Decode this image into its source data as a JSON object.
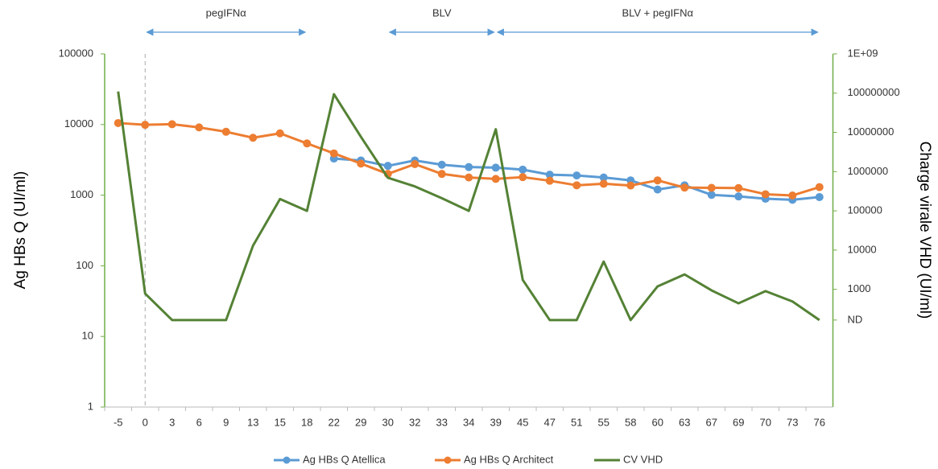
{
  "chart_data": {
    "type": "line",
    "categories": [
      "-5",
      "0",
      "3",
      "6",
      "9",
      "13",
      "15",
      "18",
      "22",
      "29",
      "30",
      "32",
      "33",
      "34",
      "39",
      "45",
      "47",
      "51",
      "55",
      "58",
      "60",
      "63",
      "67",
      "69",
      "70",
      "73",
      "76"
    ],
    "ylabel": "Ag HBs Q (UI/ml)",
    "y2label": "Charge virale VHD  (UI/ml)",
    "ylog": true,
    "y2log": true,
    "ylim": [
      1,
      100000
    ],
    "yticks": [
      1,
      10,
      100,
      1000,
      10000,
      100000
    ],
    "y2lim": [
      1,
      1000000000
    ],
    "y2ticks": [
      {
        "value": 1000000000,
        "label": "1E+09"
      },
      100000000,
      10000000,
      1000000,
      100000,
      10000,
      1000,
      {
        "value": 165,
        "label": "ND"
      }
    ],
    "axis_color": "#70ad47",
    "legend": "bottom",
    "annotations": [
      {
        "text": "pegIFNα",
        "from": "0",
        "to": "18"
      },
      {
        "text": "BLV",
        "from": "30",
        "to": "39"
      },
      {
        "text": "BLV + pegIFNα",
        "from": "39",
        "to": "76"
      }
    ],
    "series": [
      {
        "name": "Ag HBs Q Atellica",
        "color": "#5b9bd5",
        "markers": true,
        "values": [
          null,
          null,
          null,
          null,
          null,
          null,
          null,
          null,
          3300,
          3100,
          2600,
          3100,
          2700,
          2500,
          2450,
          2300,
          1950,
          1900,
          1780,
          1620,
          1200,
          1380,
          1010,
          960,
          890,
          860,
          940
        ]
      },
      {
        "name": "Ag HBs Q Architect",
        "color": "#ed7d31",
        "markers": true,
        "values": [
          10500,
          9900,
          10100,
          9100,
          7900,
          6500,
          7500,
          5400,
          3900,
          2800,
          2000,
          2750,
          2000,
          1780,
          1700,
          1800,
          1600,
          1380,
          1450,
          1370,
          1620,
          1280,
          1270,
          1260,
          1030,
          990,
          1300
        ]
      },
      {
        "name": "CV VHD",
        "color": "#548235",
        "markers": false,
        "axis": "y2",
        "values": [
          110000000,
          780,
          165,
          165,
          165,
          13000,
          200000,
          100000,
          94000000,
          7700000,
          700000,
          420000,
          210000,
          100000,
          12000000,
          1740,
          165,
          165,
          5100,
          165,
          1190,
          2400,
          940,
          440,
          900,
          490,
          165
        ]
      }
    ]
  }
}
